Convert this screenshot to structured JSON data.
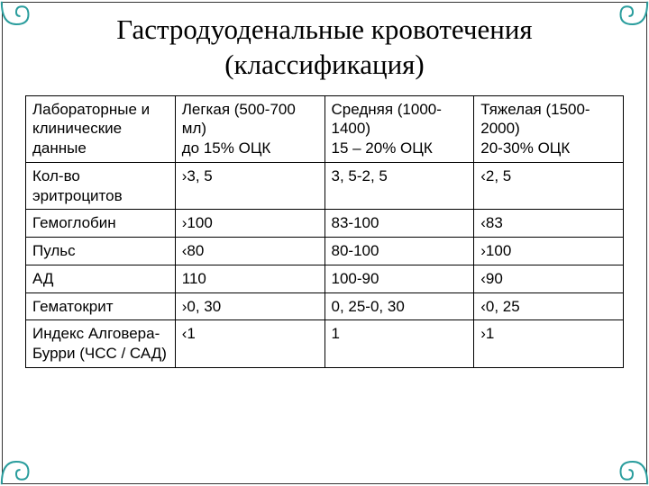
{
  "title": "Гастродуоденальные кровотечения (классификация)",
  "accent_color": "#2a9d9d",
  "table": {
    "header": [
      "Лабораторные и клинические данные",
      "Легкая (500-700 мл)\nдо 15% ОЦК",
      "Средняя (1000-1400)\n15 – 20% ОЦК",
      "Тяжелая (1500-2000)\n20-30% ОЦК"
    ],
    "rows": [
      [
        "Кол-во эритроцитов",
        "›3, 5",
        "3, 5-2, 5",
        "‹2, 5"
      ],
      [
        "Гемоглобин",
        "›100",
        "83-100",
        "‹83"
      ],
      [
        "Пульс",
        "‹80",
        "80-100",
        "›100"
      ],
      [
        "АД",
        "110",
        "100-90",
        "‹90"
      ],
      [
        "Гематокрит",
        "›0, 30",
        "0, 25-0, 30",
        "‹0, 25"
      ],
      [
        "Индекс Алговера-Бурри (ЧСС / САД)",
        "‹1",
        "1",
        "›1"
      ]
    ],
    "col_widths_pct": [
      25,
      25,
      25,
      25
    ],
    "font_size_pt": 13,
    "border_color": "#000000",
    "text_color": "#000000"
  },
  "background_color": "#ffffff",
  "title_font_family": "Georgia, serif",
  "title_font_size_pt": 24,
  "title_color": "#000000"
}
